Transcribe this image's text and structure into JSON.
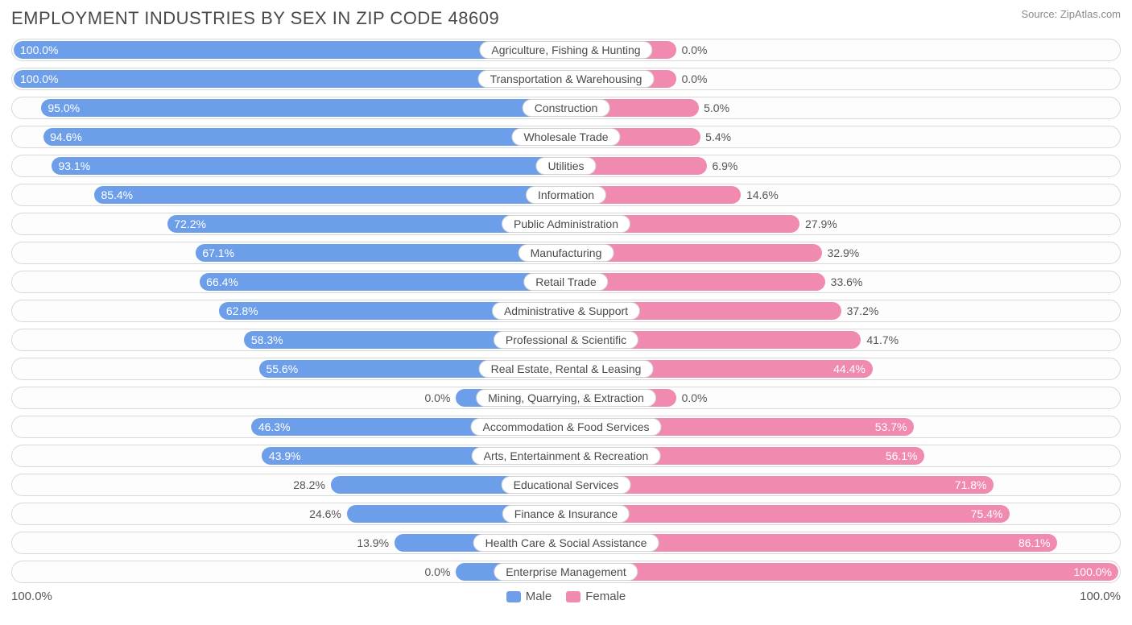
{
  "title": "EMPLOYMENT INDUSTRIES BY SEX IN ZIP CODE 48609",
  "source": "Source: ZipAtlas.com",
  "colors": {
    "male": "#6d9eea",
    "female": "#f08ab0",
    "track_border": "#d8d8d8",
    "track_bg": "#fdfdfd",
    "text": "#4a4a4a",
    "pct_text": "#555555",
    "background": "#ffffff"
  },
  "axis": {
    "left_label": "100.0%",
    "right_label": "100.0%"
  },
  "legend": {
    "male": "Male",
    "female": "Female"
  },
  "pct_inside_threshold": 55,
  "rows": [
    {
      "label": "Agriculture, Fishing & Hunting",
      "male": 100.0,
      "female": 0.0,
      "male_bar": 100.0,
      "female_bar": 20.0
    },
    {
      "label": "Transportation & Warehousing",
      "male": 100.0,
      "female": 0.0,
      "male_bar": 100.0,
      "female_bar": 20.0
    },
    {
      "label": "Construction",
      "male": 95.0,
      "female": 5.0,
      "male_bar": 95.0,
      "female_bar": 24.0
    },
    {
      "label": "Wholesale Trade",
      "male": 94.6,
      "female": 5.4,
      "male_bar": 94.6,
      "female_bar": 24.3
    },
    {
      "label": "Utilities",
      "male": 93.1,
      "female": 6.9,
      "male_bar": 93.1,
      "female_bar": 25.5
    },
    {
      "label": "Information",
      "male": 85.4,
      "female": 14.6,
      "male_bar": 85.4,
      "female_bar": 31.7
    },
    {
      "label": "Public Administration",
      "male": 72.2,
      "female": 27.9,
      "male_bar": 72.2,
      "female_bar": 42.3
    },
    {
      "label": "Manufacturing",
      "male": 67.1,
      "female": 32.9,
      "male_bar": 67.1,
      "female_bar": 46.3
    },
    {
      "label": "Retail Trade",
      "male": 66.4,
      "female": 33.6,
      "male_bar": 66.4,
      "female_bar": 46.9
    },
    {
      "label": "Administrative & Support",
      "male": 62.8,
      "female": 37.2,
      "male_bar": 62.8,
      "female_bar": 49.8
    },
    {
      "label": "Professional & Scientific",
      "male": 58.3,
      "female": 41.7,
      "male_bar": 58.3,
      "female_bar": 53.4
    },
    {
      "label": "Real Estate, Rental & Leasing",
      "male": 55.6,
      "female": 44.4,
      "male_bar": 55.6,
      "female_bar": 55.5
    },
    {
      "label": "Mining, Quarrying, & Extraction",
      "male": 0.0,
      "female": 0.0,
      "male_bar": 20.0,
      "female_bar": 20.0
    },
    {
      "label": "Accommodation & Food Services",
      "male": 46.3,
      "female": 53.7,
      "male_bar": 57.0,
      "female_bar": 63.0
    },
    {
      "label": "Arts, Entertainment & Recreation",
      "male": 43.9,
      "female": 56.1,
      "male_bar": 55.1,
      "female_bar": 64.9
    },
    {
      "label": "Educational Services",
      "male": 28.2,
      "female": 71.8,
      "male_bar": 42.6,
      "female_bar": 77.4
    },
    {
      "label": "Finance & Insurance",
      "male": 24.6,
      "female": 75.4,
      "male_bar": 39.7,
      "female_bar": 80.3
    },
    {
      "label": "Health Care & Social Assistance",
      "male": 13.9,
      "female": 86.1,
      "male_bar": 31.1,
      "female_bar": 88.9
    },
    {
      "label": "Enterprise Management",
      "male": 0.0,
      "female": 100.0,
      "male_bar": 20.0,
      "female_bar": 100.0
    }
  ]
}
